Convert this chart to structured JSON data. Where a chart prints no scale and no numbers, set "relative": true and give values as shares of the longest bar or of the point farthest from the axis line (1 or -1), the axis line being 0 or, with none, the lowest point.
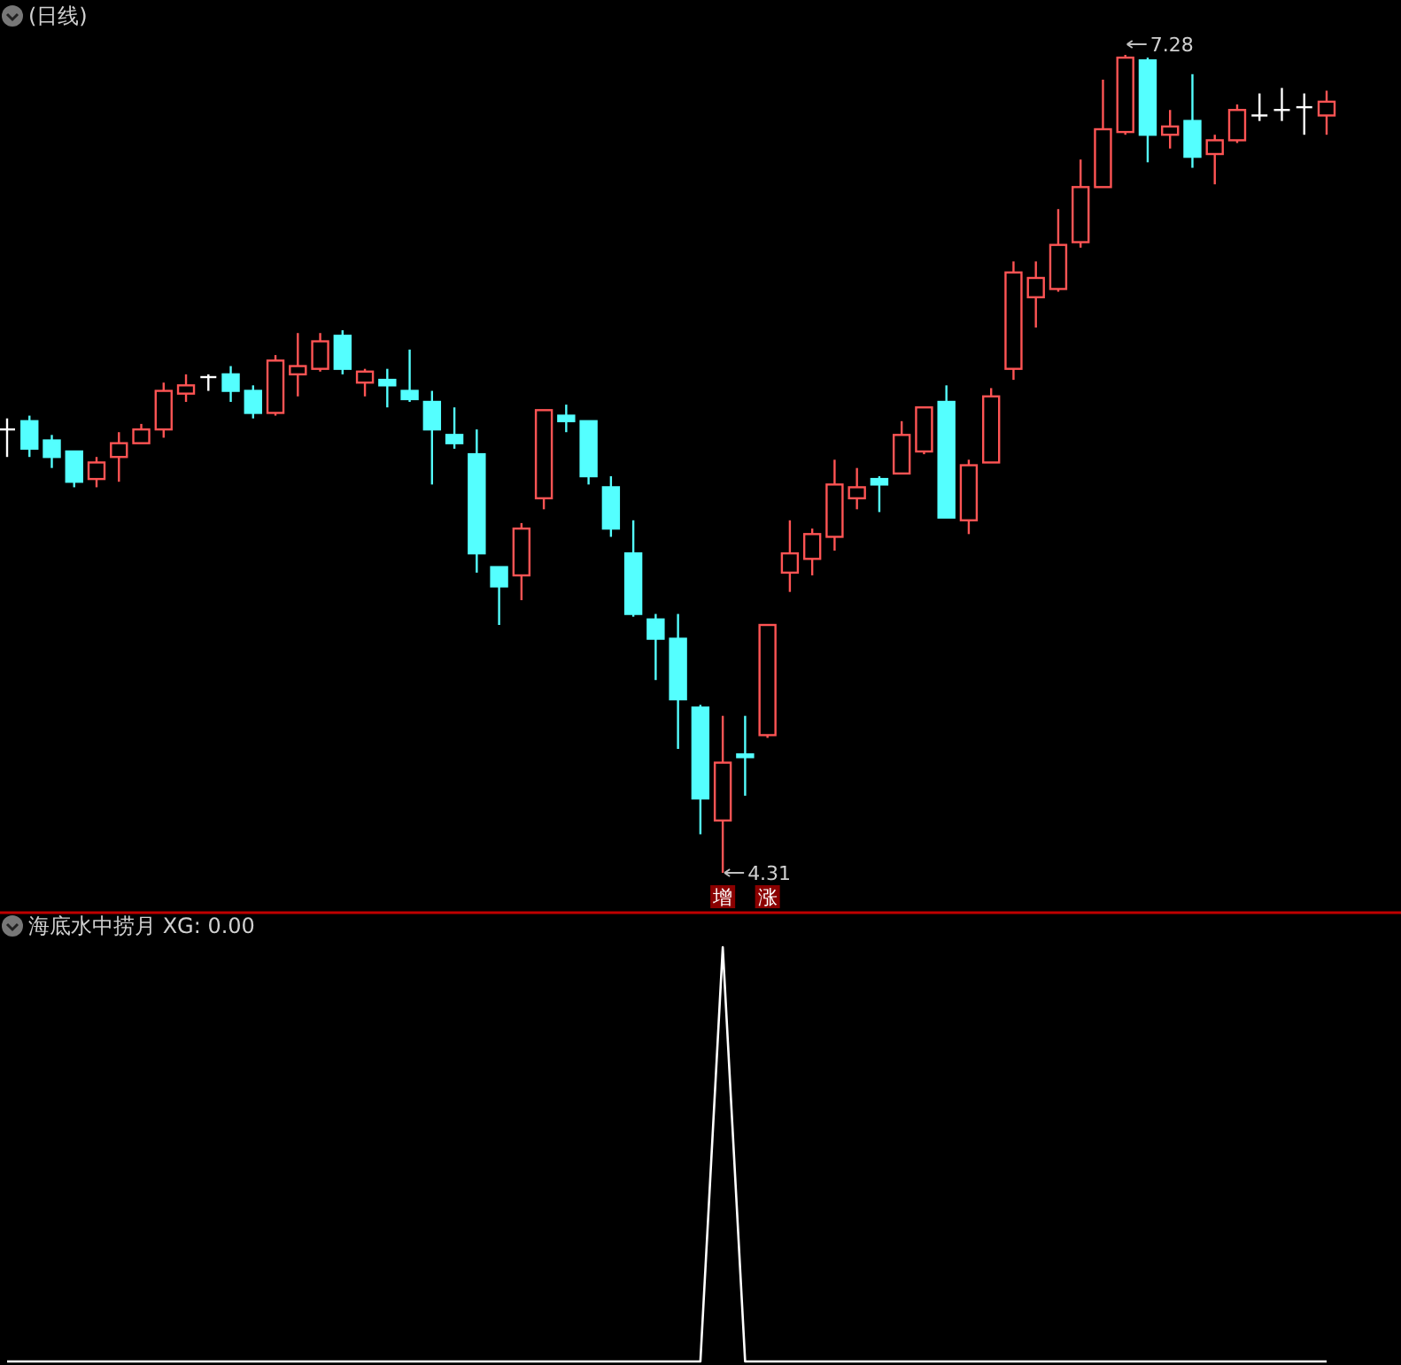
{
  "chart_data": [
    {
      "type": "candlestick",
      "title": "(日线)",
      "categories": [
        null,
        null,
        null,
        null,
        null,
        null,
        null,
        null,
        null,
        null,
        null,
        null,
        null,
        null,
        null,
        null,
        null,
        null,
        null,
        null,
        null,
        null,
        null,
        null,
        null,
        null,
        null,
        null,
        null,
        null,
        null,
        null,
        null,
        null,
        null,
        null,
        null,
        null,
        null,
        null,
        null,
        null,
        null,
        null,
        null,
        null,
        null,
        null,
        null,
        null,
        null,
        null,
        null,
        null,
        null,
        null,
        null,
        null,
        null,
        null
      ],
      "ohlc": [
        [
          5.92,
          5.96,
          5.82,
          5.92
        ],
        [
          5.95,
          5.97,
          5.82,
          5.85
        ],
        [
          5.88,
          5.9,
          5.78,
          5.82
        ],
        [
          5.84,
          5.84,
          5.71,
          5.73
        ],
        [
          5.74,
          5.82,
          5.71,
          5.8
        ],
        [
          5.82,
          5.91,
          5.73,
          5.87
        ],
        [
          5.87,
          5.94,
          5.87,
          5.92
        ],
        [
          5.92,
          6.09,
          5.89,
          6.06
        ],
        [
          6.05,
          6.12,
          6.02,
          6.08
        ],
        [
          6.11,
          6.12,
          6.06,
          6.11
        ],
        [
          6.12,
          6.15,
          6.02,
          6.06
        ],
        [
          6.06,
          6.08,
          5.96,
          5.98
        ],
        [
          5.98,
          6.19,
          5.97,
          6.17
        ],
        [
          6.12,
          6.27,
          6.04,
          6.15
        ],
        [
          6.14,
          6.27,
          6.13,
          6.24
        ],
        [
          6.26,
          6.28,
          6.12,
          6.14
        ],
        [
          6.09,
          6.14,
          6.04,
          6.13
        ],
        [
          6.1,
          6.14,
          6.0,
          6.08
        ],
        [
          6.06,
          6.21,
          6.02,
          6.03
        ],
        [
          6.02,
          6.06,
          5.72,
          5.92
        ],
        [
          5.9,
          6.0,
          5.85,
          5.87
        ],
        [
          5.83,
          5.92,
          5.4,
          5.47
        ],
        [
          5.42,
          5.42,
          5.21,
          5.35
        ],
        [
          5.39,
          5.58,
          5.3,
          5.56
        ],
        [
          5.67,
          5.99,
          5.63,
          5.99
        ],
        [
          5.97,
          6.01,
          5.91,
          5.95
        ],
        [
          5.95,
          5.95,
          5.72,
          5.75
        ],
        [
          5.71,
          5.75,
          5.53,
          5.56
        ],
        [
          5.47,
          5.59,
          5.24,
          5.25
        ],
        [
          5.23,
          5.25,
          5.01,
          5.16
        ],
        [
          5.16,
          5.25,
          4.76,
          4.94
        ],
        [
          4.91,
          4.92,
          4.45,
          4.58
        ],
        [
          4.5,
          4.88,
          4.31,
          4.71
        ],
        [
          4.74,
          4.88,
          4.59,
          4.73
        ],
        [
          4.81,
          5.21,
          4.8,
          5.21
        ],
        [
          5.4,
          5.59,
          5.33,
          5.47
        ],
        [
          5.45,
          5.56,
          5.39,
          5.54
        ],
        [
          5.53,
          5.81,
          5.48,
          5.72
        ],
        [
          5.67,
          5.78,
          5.63,
          5.71
        ],
        [
          5.74,
          5.75,
          5.62,
          5.72
        ],
        [
          5.76,
          5.95,
          5.76,
          5.9
        ],
        [
          5.84,
          6.0,
          5.83,
          6.0
        ],
        [
          6.02,
          6.08,
          5.6,
          5.6
        ],
        [
          5.59,
          5.81,
          5.54,
          5.79
        ],
        [
          5.8,
          6.07,
          5.8,
          6.04
        ],
        [
          6.14,
          6.53,
          6.1,
          6.49
        ],
        [
          6.4,
          6.53,
          6.29,
          6.47
        ],
        [
          6.43,
          6.72,
          6.42,
          6.59
        ],
        [
          6.6,
          6.9,
          6.58,
          6.8
        ],
        [
          6.8,
          7.19,
          6.8,
          7.01
        ],
        [
          7.0,
          7.28,
          6.99,
          7.27
        ],
        [
          7.26,
          7.27,
          6.89,
          6.99
        ],
        [
          6.99,
          7.08,
          6.94,
          7.02
        ],
        [
          7.04,
          7.21,
          6.87,
          6.91
        ],
        [
          6.92,
          6.99,
          6.81,
          6.97
        ],
        [
          6.97,
          7.1,
          6.96,
          7.08
        ],
        [
          7.06,
          7.14,
          7.04,
          7.06
        ],
        [
          7.08,
          7.16,
          7.04,
          7.08
        ],
        [
          7.09,
          7.14,
          6.99,
          7.09
        ],
        [
          7.06,
          7.15,
          6.99,
          7.11
        ]
      ],
      "colors": [
        "#ffffff",
        "#54ffff",
        "#54ffff",
        "#54ffff",
        "#ff5454",
        "#ff5454",
        "#ff5454",
        "#ff5454",
        "#ff5454",
        "#ffffff",
        "#54ffff",
        "#54ffff",
        "#ff5454",
        "#ff5454",
        "#ff5454",
        "#54ffff",
        "#ff5454",
        "#54ffff",
        "#54ffff",
        "#54ffff",
        "#54ffff",
        "#54ffff",
        "#54ffff",
        "#ff5454",
        "#ff5454",
        "#54ffff",
        "#54ffff",
        "#54ffff",
        "#54ffff",
        "#54ffff",
        "#54ffff",
        "#54ffff",
        "#ff5454",
        "#54ffff",
        "#ff5454",
        "#ff5454",
        "#ff5454",
        "#ff5454",
        "#ff5454",
        "#54ffff",
        "#ff5454",
        "#ff5454",
        "#54ffff",
        "#ff5454",
        "#ff5454",
        "#ff5454",
        "#ff5454",
        "#ff5454",
        "#ff5454",
        "#ff5454",
        "#ff5454",
        "#54ffff",
        "#ff5454",
        "#54ffff",
        "#ff5454",
        "#ff5454",
        "#ffffff",
        "#ffffff",
        "#ffffff",
        "#ff5454"
      ],
      "annotations": [
        "7.28",
        "4.31",
        "增涨"
      ]
    },
    {
      "type": "line",
      "title": "海底水中捞月 XG: 0.00",
      "relative": true,
      "categories": [
        null,
        null,
        null,
        null,
        null,
        null,
        null,
        null,
        null,
        null,
        null,
        null,
        null,
        null,
        null,
        null,
        null,
        null,
        null,
        null,
        null,
        null,
        null,
        null,
        null,
        null,
        null,
        null,
        null,
        null,
        null,
        null,
        null,
        null,
        null,
        null,
        null,
        null,
        null,
        null,
        null,
        null,
        null,
        null,
        null,
        null,
        null,
        null,
        null,
        null,
        null,
        null,
        null,
        null,
        null,
        null,
        null,
        null,
        null,
        null
      ],
      "series": [
        {
          "color": "#ffffff",
          "values": [
            0,
            0,
            0,
            0,
            0,
            0,
            0,
            0,
            0,
            0,
            0,
            0,
            0,
            0,
            0,
            0,
            0,
            0,
            0,
            0,
            0,
            0,
            0,
            0,
            0,
            0,
            0,
            0,
            0,
            0,
            0,
            0,
            1,
            0,
            0,
            0,
            0,
            0,
            0,
            0,
            0,
            0,
            0,
            0,
            0,
            0,
            0,
            0,
            0,
            0,
            0,
            0,
            0,
            0,
            0,
            0,
            0,
            0,
            0,
            0
          ]
        }
      ]
    }
  ]
}
